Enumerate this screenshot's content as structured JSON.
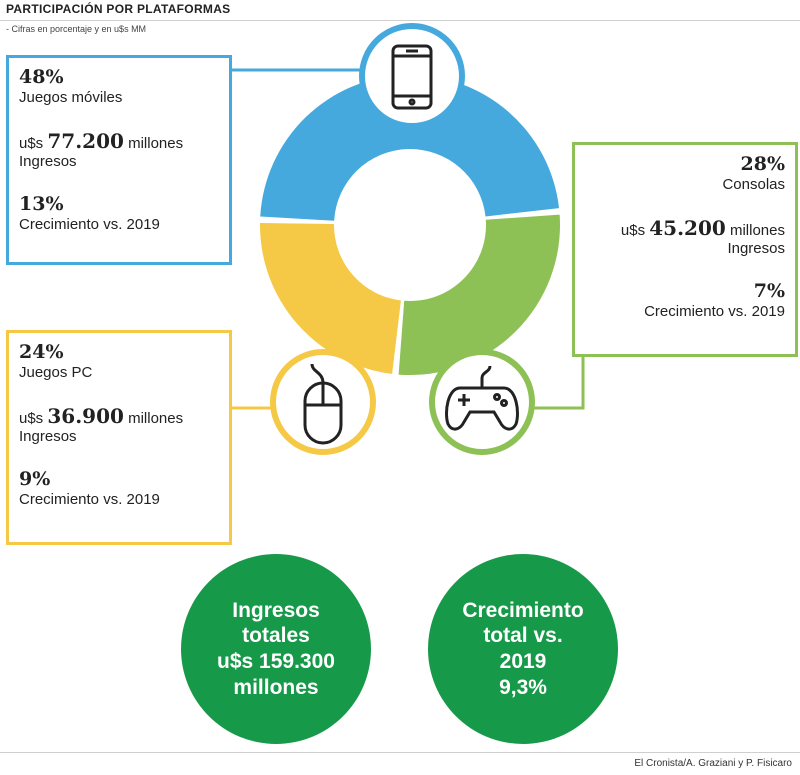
{
  "header": {
    "title": "PARTICIPACIÓN POR PLATAFORMAS",
    "subtitle": "- Cifras en porcentaje y en u$s MM"
  },
  "colors": {
    "mobile": "#46a9dd",
    "consoles": "#8dc155",
    "pc": "#f5c945",
    "summary": "#17994a"
  },
  "chart_data": {
    "type": "pie",
    "title": "PARTICIPACIÓN POR PLATAFORMAS",
    "subtitle": "- Cifras en porcentaje y en u$s MM",
    "series": [
      {
        "name": "Juegos móviles",
        "share_pct": 48,
        "revenue_musd": 77200,
        "growth_pct": 13,
        "color": "#46a9dd",
        "icon": "smartphone-icon"
      },
      {
        "name": "Consolas",
        "share_pct": 28,
        "revenue_musd": 45200,
        "growth_pct": 7,
        "color": "#8dc155",
        "icon": "gamepad-icon"
      },
      {
        "name": "Juegos PC",
        "share_pct": 24,
        "revenue_musd": 36900,
        "growth_pct": 9,
        "color": "#f5c945",
        "icon": "mouse-icon"
      }
    ],
    "total_revenue_musd": 159300,
    "total_growth_pct": 9.3
  },
  "boxes": {
    "mobile": {
      "pct": "48%",
      "label": "Juegos móviles",
      "rev_prefix": "u$s",
      "rev_value": "77.200",
      "rev_unit": "millones",
      "rev_label": "Ingresos",
      "growth_pct": "13%",
      "growth_label": "Crecimiento vs. 2019"
    },
    "consoles": {
      "pct": "28%",
      "label": "Consolas",
      "rev_prefix": "u$s",
      "rev_value": "45.200",
      "rev_unit": "millones",
      "rev_label": "Ingresos",
      "growth_pct": "7%",
      "growth_label": "Crecimiento vs. 2019"
    },
    "pc": {
      "pct": "24%",
      "label": "Juegos PC",
      "rev_prefix": "u$s",
      "rev_value": "36.900",
      "rev_unit": "millones",
      "rev_label": "Ingresos",
      "growth_pct": "9%",
      "growth_label": "Crecimiento vs. 2019"
    }
  },
  "summary": {
    "total": [
      "Ingresos",
      "totales",
      "u$s 159.300",
      "millones"
    ],
    "growth": [
      "Crecimiento",
      "total vs.",
      "2019",
      "9,3%"
    ]
  },
  "source": "El Cronista/A. Graziani y P. Fisicaro"
}
